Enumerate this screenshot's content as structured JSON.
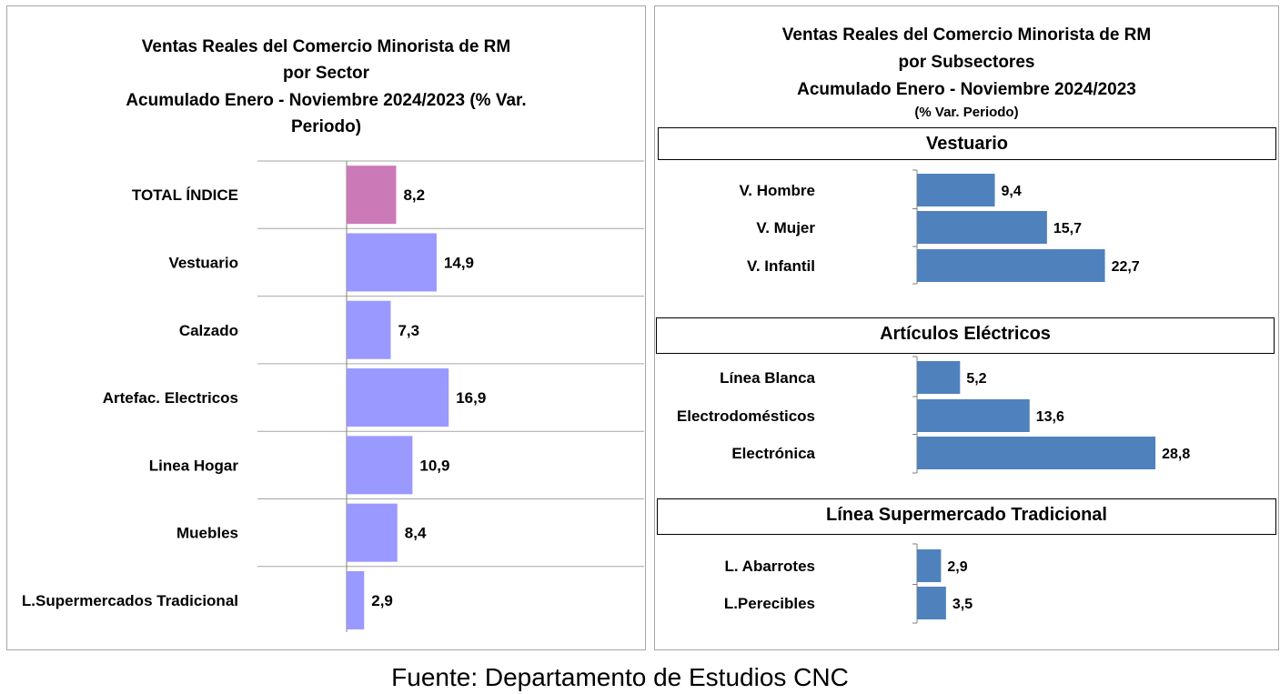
{
  "left_chart": {
    "title_lines": [
      "Ventas Reales del Comercio Minorista de RM",
      "por Sector",
      "Acumulado Enero - Noviembre 2024/2023 (% Var.",
      "Periodo)"
    ]
  },
  "right_chart": {
    "title_lines": [
      "Ventas Reales del Comercio Minorista de RM",
      "por Subsectores",
      "Acumulado Enero - Noviembre  2024/2023"
    ],
    "subtitle": "(% Var. Periodo)"
  },
  "colors": {
    "total_bar": "#cc79b8",
    "sector_bar": "#9999ff",
    "subsector_bar": "#4f81bd",
    "grid": "#a6a6a6",
    "axis": "#808080"
  },
  "chart_data": [
    {
      "type": "bar",
      "orientation": "horizontal",
      "title": "Ventas Reales del Comercio Minorista de RM por Sector Acumulado Enero - Noviembre 2024/2023 (% Var. Periodo)",
      "categories": [
        "TOTAL ÍNDICE",
        "Vestuario",
        "Calzado",
        "Artefac. Electricos",
        "Linea Hogar",
        "Muebles",
        "L.Supermercados Tradicional"
      ],
      "values": [
        8.2,
        14.9,
        7.3,
        16.9,
        10.9,
        8.4,
        2.9
      ],
      "value_labels": [
        "8,2",
        "14,9",
        "7,3",
        "16,9",
        "10,9",
        "8,4",
        "2,9"
      ],
      "xlim": [
        0,
        40
      ],
      "grid": true
    },
    {
      "type": "bar",
      "orientation": "horizontal",
      "title": "Ventas Reales del Comercio Minorista de RM por Subsectores Acumulado Enero - Noviembre 2024/2023 (% Var. Periodo)",
      "groups": [
        {
          "name": "Vestuario",
          "categories": [
            "V. Hombre",
            "V. Mujer",
            "V. Infantil"
          ],
          "values": [
            9.4,
            15.7,
            22.7
          ],
          "value_labels": [
            "9,4",
            "15,7",
            "22,7"
          ]
        },
        {
          "name": "Artículos Eléctricos",
          "categories": [
            "Línea Blanca",
            "Electrodomésticos",
            "Electrónica"
          ],
          "values": [
            5.2,
            13.6,
            28.8
          ],
          "value_labels": [
            "5,2",
            "13,6",
            "28,8"
          ]
        },
        {
          "name": "Línea  Supermercado Tradicional",
          "categories": [
            "L. Abarrotes",
            "L.Perecibles"
          ],
          "values": [
            2.9,
            3.5
          ],
          "value_labels": [
            "2,9",
            "3,5"
          ]
        }
      ],
      "grid": false
    }
  ],
  "footer": "Fuente: Departamento de Estudios CNC"
}
